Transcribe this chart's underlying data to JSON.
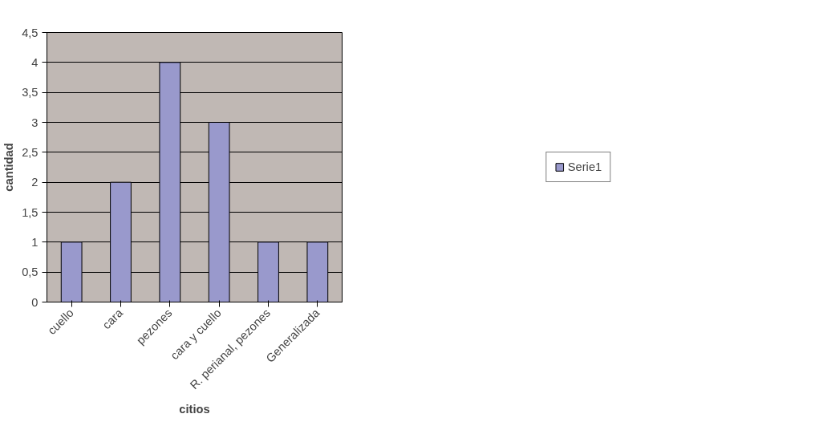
{
  "chart_data": {
    "type": "bar",
    "xlabel": "citios",
    "ylabel": "cantidad",
    "categories": [
      "cuello",
      "cara",
      "pezones",
      "cara y cuello",
      "R. perianal, pezones",
      "Generalizada"
    ],
    "series": [
      {
        "name": "Serie1",
        "color": "#9999cc",
        "values": [
          1,
          2,
          4,
          3,
          1,
          1
        ]
      }
    ],
    "ylim": [
      0,
      4.5
    ],
    "yticks": [
      0,
      {
        "value": 0.5,
        "label": "0,5"
      },
      1,
      {
        "value": 1.5,
        "label": "1,5"
      },
      2,
      {
        "value": 2.5,
        "label": "2,5"
      },
      3,
      {
        "value": 3.5,
        "label": "3,5"
      },
      4,
      {
        "value": 4.5,
        "label": "4,5"
      }
    ],
    "grid": "y",
    "legend": "right"
  }
}
